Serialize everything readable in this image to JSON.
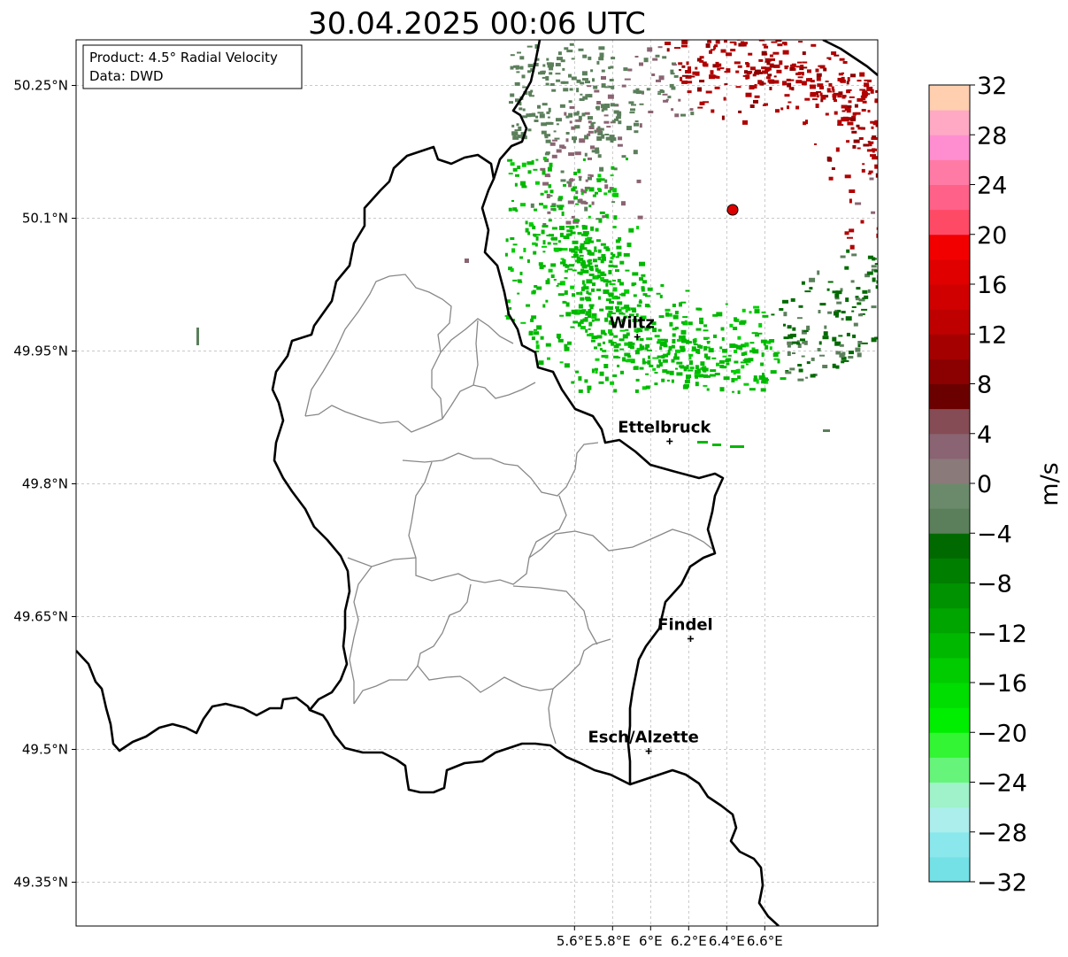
{
  "title": "30.04.2025 00:06 UTC",
  "info": {
    "product": "Product: 4.5° Radial Velocity",
    "source": "Data: DWD"
  },
  "axes": {
    "lon_ticks": [
      "5.6°E",
      "5.8°E",
      "6°E",
      "6.2°E",
      "6.4°E",
      "6.6°E"
    ],
    "lat_ticks": [
      "50.25°N",
      "50.1°N",
      "49.95°N",
      "49.8°N",
      "49.65°N",
      "49.5°N",
      "49.35°N"
    ]
  },
  "cities": [
    {
      "name": "Wiltz",
      "lon": 5.93,
      "lat": 49.966
    },
    {
      "name": "Ettelbruck",
      "lon": 6.1,
      "lat": 49.848
    },
    {
      "name": "Findel",
      "lon": 6.21,
      "lat": 49.625
    },
    {
      "name": "Esch/Alzette",
      "lon": 5.99,
      "lat": 49.498
    }
  ],
  "radar_site": {
    "lon": 6.548,
    "lat": 50.11,
    "color": "#dd0000"
  },
  "colorbar": {
    "unit": "m/s",
    "min": -32,
    "max": 32,
    "tick_labels": [
      "32",
      "28",
      "24",
      "20",
      "16",
      "12",
      "8",
      "4",
      "0",
      "−4",
      "−8",
      "−12",
      "−16",
      "−20",
      "−24",
      "−28",
      "−32"
    ],
    "colors_bottom_to_top": [
      "#73e1e6",
      "#8ae8ec",
      "#aceeeb",
      "#9ff2c9",
      "#66f57a",
      "#33f533",
      "#00ee00",
      "#00dd00",
      "#00cc00",
      "#00b800",
      "#00a500",
      "#009200",
      "#007e00",
      "#006a00",
      "#5b7f5b",
      "#6b8a6b",
      "#8a7a7a",
      "#8a6472",
      "#854c56",
      "#6b0000",
      "#8b0000",
      "#a50000",
      "#be0000",
      "#d00000",
      "#e00000",
      "#f20000",
      "#ff4a66",
      "#ff6188",
      "#ff7aa5",
      "#ff8ed1",
      "#ffa9c5",
      "#ffcfb0"
    ]
  },
  "colors": {
    "border": "#000000",
    "canton_lines": "#888888",
    "velocity_green": "#00b800",
    "velocity_dark_green": "#006a00",
    "velocity_gray_green": "#5b7f5b",
    "velocity_red": "#b00000",
    "velocity_mauve": "#8a6472"
  }
}
